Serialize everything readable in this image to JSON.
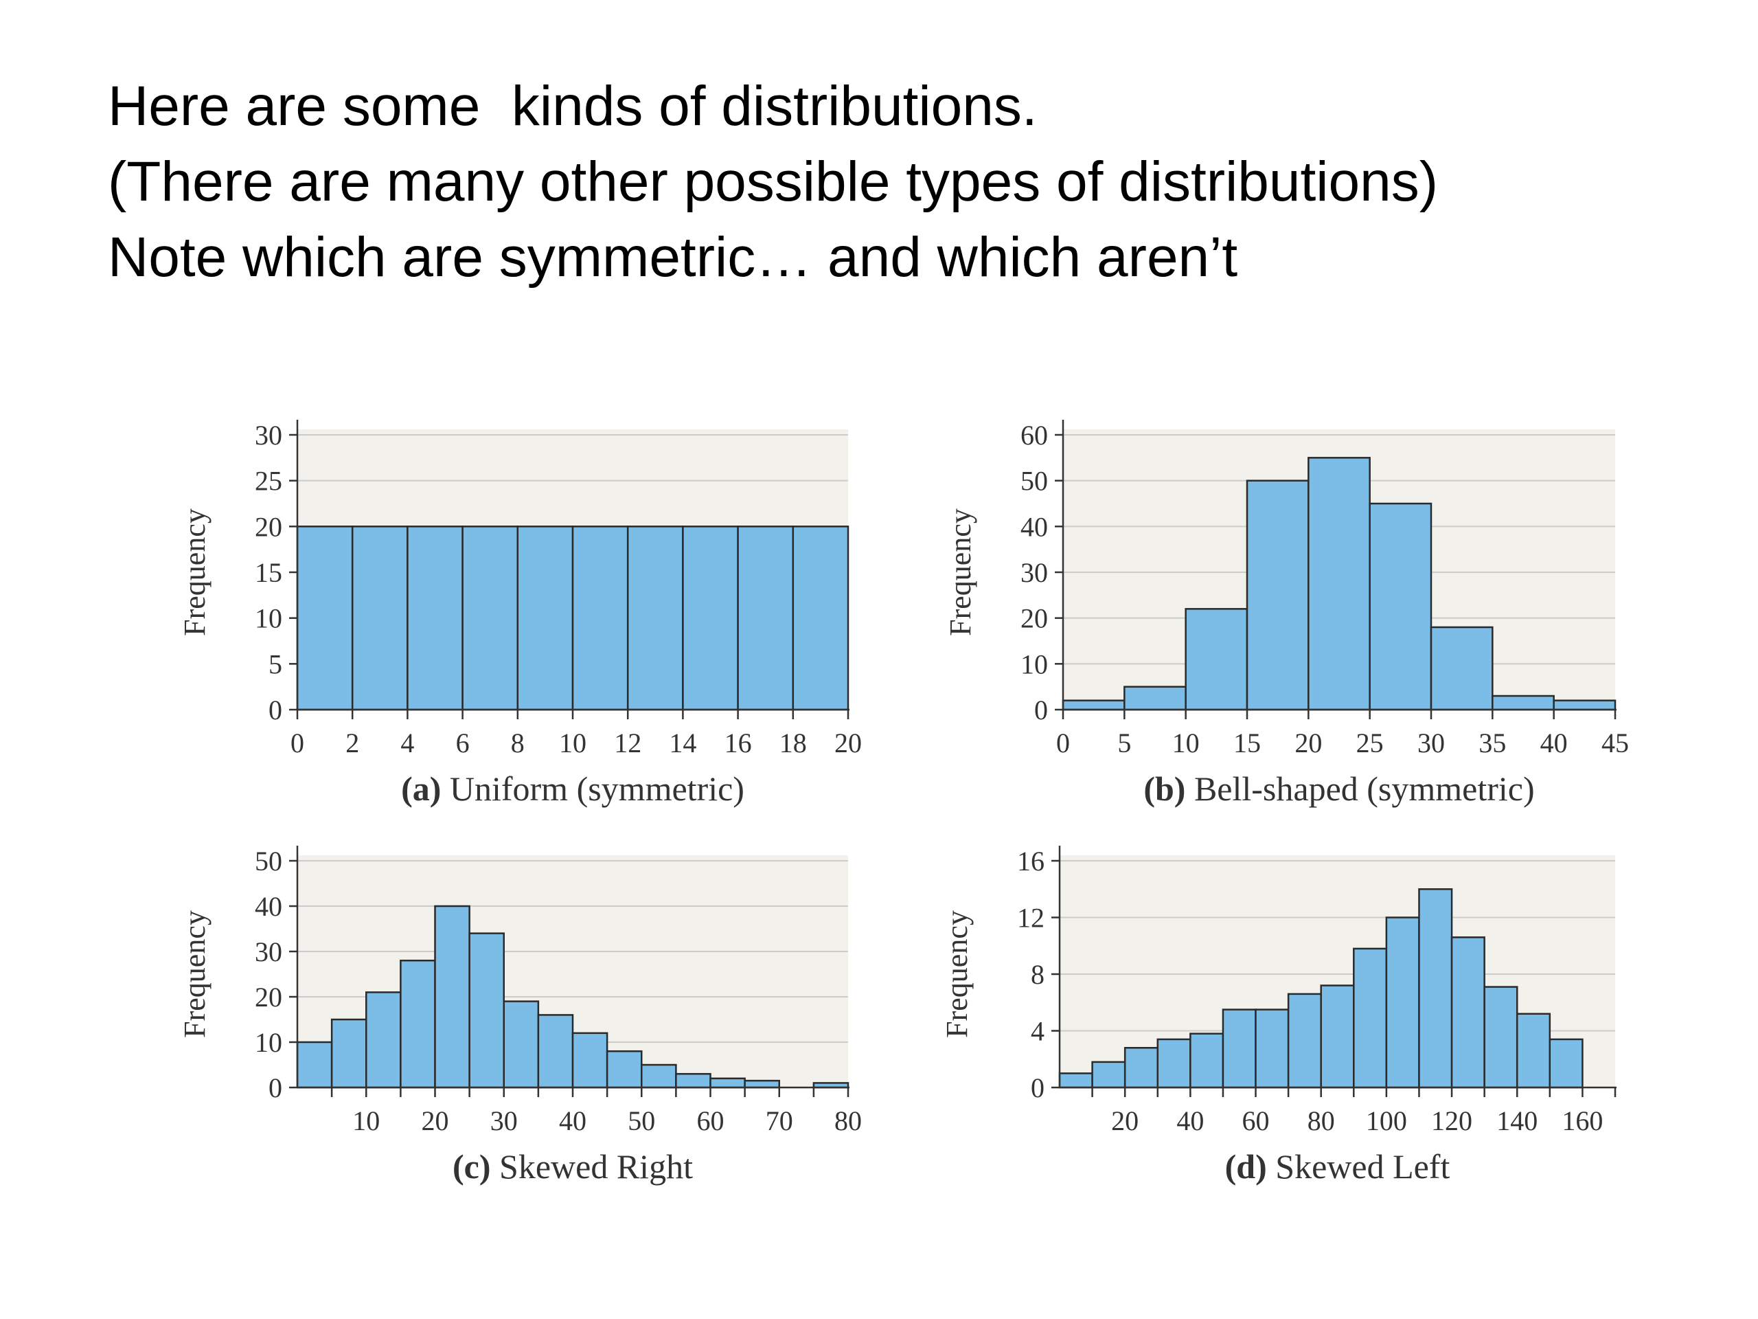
{
  "slide": {
    "title_lines": [
      "Here are some  kinds of distributions.",
      "(There are many other possible types of distributions)",
      "Note which are symmetric… and which aren’t"
    ]
  },
  "colors": {
    "bar_fill": "#7bbde6",
    "bar_stroke": "#2a2a2a",
    "plot_background": "#f2f1ec",
    "gridline": "#cccccc",
    "axis": "#333333"
  },
  "chart_data": [
    {
      "type": "bar",
      "ylabel": "Frequency",
      "caption_letter": "(a)",
      "caption_text": " Uniform (symmetric)",
      "bins": [
        [
          0,
          2
        ],
        [
          2,
          4
        ],
        [
          4,
          6
        ],
        [
          6,
          8
        ],
        [
          8,
          10
        ],
        [
          10,
          12
        ],
        [
          12,
          14
        ],
        [
          14,
          16
        ],
        [
          16,
          18
        ],
        [
          18,
          20
        ]
      ],
      "values": [
        20,
        20,
        20,
        20,
        20,
        20,
        20,
        20,
        20,
        20
      ],
      "xlim": [
        0,
        20
      ],
      "ylim": [
        0,
        30
      ],
      "xticks": [
        0,
        2,
        4,
        6,
        8,
        10,
        12,
        14,
        16,
        18,
        20
      ],
      "xtick_labels": [
        "0",
        "2",
        "4",
        "6",
        "8",
        "10",
        "12",
        "14",
        "16",
        "18",
        "20"
      ],
      "yticks": [
        0,
        5,
        10,
        15,
        20,
        25,
        30
      ],
      "ytick_labels": [
        "0",
        "5",
        "10",
        "15",
        "20",
        "25",
        "30"
      ],
      "grid": true
    },
    {
      "type": "bar",
      "ylabel": "Frequency",
      "caption_letter": "(b)",
      "caption_text": " Bell-shaped (symmetric)",
      "bins": [
        [
          0,
          5
        ],
        [
          5,
          10
        ],
        [
          10,
          15
        ],
        [
          15,
          20
        ],
        [
          20,
          25
        ],
        [
          25,
          30
        ],
        [
          30,
          35
        ],
        [
          35,
          40
        ],
        [
          40,
          45
        ]
      ],
      "values": [
        2,
        5,
        22,
        50,
        55,
        45,
        18,
        3,
        2
      ],
      "xlim": [
        0,
        45
      ],
      "ylim": [
        0,
        60
      ],
      "xticks": [
        0,
        5,
        10,
        15,
        20,
        25,
        30,
        35,
        40,
        45
      ],
      "xtick_labels": [
        "0",
        "5",
        "10",
        "15",
        "20",
        "25",
        "30",
        "35",
        "40",
        "45"
      ],
      "yticks": [
        0,
        10,
        20,
        30,
        40,
        50,
        60
      ],
      "ytick_labels": [
        "0",
        "10",
        "20",
        "30",
        "40",
        "50",
        "60"
      ],
      "grid": true
    },
    {
      "type": "bar",
      "ylabel": "Frequency",
      "caption_letter": "(c)",
      "caption_text": " Skewed Right",
      "bins": [
        [
          0,
          5
        ],
        [
          5,
          10
        ],
        [
          10,
          15
        ],
        [
          15,
          20
        ],
        [
          20,
          25
        ],
        [
          25,
          30
        ],
        [
          30,
          35
        ],
        [
          35,
          40
        ],
        [
          40,
          45
        ],
        [
          45,
          50
        ],
        [
          50,
          55
        ],
        [
          55,
          60
        ],
        [
          60,
          65
        ],
        [
          65,
          70
        ],
        [
          70,
          75
        ],
        [
          75,
          80
        ]
      ],
      "values": [
        10,
        15,
        21,
        28,
        40,
        34,
        19,
        16,
        12,
        8,
        5,
        3,
        2,
        1.5,
        0,
        1
      ],
      "xlim": [
        0,
        80
      ],
      "ylim": [
        0,
        50
      ],
      "xticks": [
        5,
        10,
        15,
        20,
        25,
        30,
        35,
        40,
        45,
        50,
        55,
        60,
        65,
        70,
        75,
        80
      ],
      "xtick_labels": [
        "",
        "10",
        "",
        "20",
        "",
        "30",
        "",
        "40",
        "",
        "50",
        "",
        "60",
        "",
        "70",
        "",
        "80"
      ],
      "yticks": [
        0,
        10,
        20,
        30,
        40,
        50
      ],
      "ytick_labels": [
        "0",
        "10",
        "20",
        "30",
        "40",
        "50"
      ],
      "grid": true
    },
    {
      "type": "bar",
      "ylabel": "Frequency",
      "caption_letter": "(d)",
      "caption_text": " Skewed Left",
      "bins": [
        [
          0,
          10
        ],
        [
          10,
          20
        ],
        [
          20,
          30
        ],
        [
          30,
          40
        ],
        [
          40,
          50
        ],
        [
          50,
          60
        ],
        [
          60,
          70
        ],
        [
          70,
          80
        ],
        [
          80,
          90
        ],
        [
          90,
          100
        ],
        [
          100,
          110
        ],
        [
          110,
          120
        ],
        [
          120,
          130
        ],
        [
          130,
          140
        ],
        [
          140,
          150
        ],
        [
          150,
          160
        ]
      ],
      "values": [
        1,
        1.8,
        2.8,
        3.4,
        3.8,
        5.5,
        5.5,
        6.6,
        7.2,
        9.8,
        12,
        14,
        10.6,
        7.1,
        5.2,
        3.4
      ],
      "xlim": [
        0,
        170
      ],
      "ylim": [
        0,
        16
      ],
      "xticks": [
        10,
        20,
        30,
        40,
        50,
        60,
        70,
        80,
        90,
        100,
        110,
        120,
        130,
        140,
        150,
        160,
        170
      ],
      "xtick_labels": [
        "",
        "20",
        "",
        "40",
        "",
        "60",
        "",
        "80",
        "",
        "100",
        "",
        "120",
        "",
        "140",
        "",
        "160",
        ""
      ],
      "yticks": [
        0,
        4,
        8,
        12,
        16
      ],
      "ytick_labels": [
        "0",
        "4",
        "8",
        "12",
        "16"
      ],
      "grid": true
    }
  ]
}
